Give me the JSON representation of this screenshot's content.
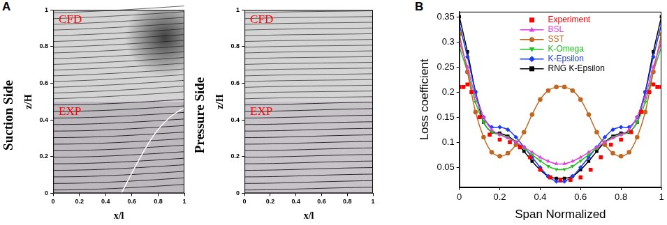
{
  "panel_labels": [
    "A",
    "B"
  ],
  "chart_data": [
    {
      "type": "image",
      "title": "Suction Side",
      "xlabel": "x/l",
      "ylabel": "z/H",
      "xlim": [
        0,
        1
      ],
      "ylim": [
        0,
        1
      ],
      "xticks": [
        0,
        0.2,
        0.4,
        0.6,
        0.8,
        1
      ],
      "yticks": [
        0,
        0.2,
        0.4,
        0.6,
        0.8,
        1
      ],
      "annotations": [
        "CFD",
        "EXP"
      ],
      "grid": false
    },
    {
      "type": "image",
      "title": "Pressure Side",
      "xlabel": "x/l",
      "ylabel": "z/H",
      "xlim": [
        0,
        1
      ],
      "ylim": [
        0,
        1
      ],
      "xticks": [
        0,
        0.2,
        0.4,
        0.6,
        0.8,
        1
      ],
      "yticks": [
        0,
        0.2,
        0.4,
        0.6,
        0.8,
        1
      ],
      "annotations": [
        "CFD",
        "EXP"
      ],
      "grid": false
    },
    {
      "type": "line",
      "xlabel": "Span Normalized",
      "ylabel": "Loss coefficient",
      "xlim": [
        0,
        1
      ],
      "ylim": [
        0.01,
        0.36
      ],
      "xticks": [
        0,
        0.2,
        0.4,
        0.6,
        0.8,
        1
      ],
      "yticks": [
        0.05,
        0.1,
        0.15,
        0.2,
        0.25,
        0.3,
        0.35
      ],
      "grid": false,
      "legend": "top",
      "x": [
        0,
        0.04,
        0.08,
        0.12,
        0.16,
        0.2,
        0.24,
        0.28,
        0.32,
        0.36,
        0.4,
        0.44,
        0.48,
        0.52,
        0.56,
        0.6,
        0.64,
        0.68,
        0.72,
        0.76,
        0.8,
        0.84,
        0.88,
        0.92,
        0.96,
        1
      ],
      "series": [
        {
          "name": "Experiment",
          "color": "#ff0000",
          "marker": "square",
          "line_style": "none",
          "x": [
            0,
            0.02,
            0.04,
            0.06,
            0.1,
            0.15,
            0.2,
            0.25,
            0.3,
            0.35,
            0.4,
            0.45,
            0.5,
            0.55,
            0.6,
            0.65,
            0.7,
            0.75,
            0.8,
            0.85,
            0.9,
            0.94,
            0.96,
            0.98,
            1
          ],
          "values": [
            0.21,
            0.21,
            0.215,
            0.2,
            0.15,
            0.115,
            0.105,
            0.1,
            0.09,
            0.07,
            0.045,
            0.03,
            0.025,
            0.025,
            0.03,
            0.045,
            0.07,
            0.095,
            0.105,
            0.12,
            0.16,
            0.2,
            0.215,
            0.21,
            0.21
          ]
        },
        {
          "name": "BSL",
          "color": "#e040e0",
          "marker": "triangle",
          "line_style": "solid",
          "values": [
            0.3,
            0.25,
            0.19,
            0.15,
            0.125,
            0.115,
            0.108,
            0.1,
            0.09,
            0.08,
            0.07,
            0.062,
            0.057,
            0.057,
            0.062,
            0.07,
            0.08,
            0.09,
            0.1,
            0.108,
            0.115,
            0.125,
            0.15,
            0.19,
            0.25,
            0.3
          ]
        },
        {
          "name": "SST",
          "color": "#c0661e",
          "marker": "circle",
          "line_style": "solid",
          "values": [
            0.315,
            0.24,
            0.16,
            0.11,
            0.08,
            0.072,
            0.078,
            0.095,
            0.12,
            0.155,
            0.185,
            0.203,
            0.21,
            0.21,
            0.203,
            0.185,
            0.155,
            0.12,
            0.095,
            0.078,
            0.072,
            0.08,
            0.11,
            0.16,
            0.24,
            0.315
          ]
        },
        {
          "name": "K-Omega",
          "color": "#22c022",
          "marker": "triangle-down",
          "line_style": "solid",
          "values": [
            0.29,
            0.24,
            0.18,
            0.14,
            0.12,
            0.115,
            0.11,
            0.1,
            0.088,
            0.075,
            0.063,
            0.052,
            0.046,
            0.046,
            0.052,
            0.063,
            0.075,
            0.088,
            0.1,
            0.11,
            0.115,
            0.12,
            0.14,
            0.18,
            0.24,
            0.29
          ]
        },
        {
          "name": "K-Epsilon",
          "color": "#1c3cf0",
          "marker": "diamond",
          "line_style": "solid",
          "values": [
            0.335,
            0.27,
            0.2,
            0.15,
            0.13,
            0.13,
            0.125,
            0.11,
            0.09,
            0.07,
            0.05,
            0.032,
            0.022,
            0.022,
            0.032,
            0.05,
            0.07,
            0.09,
            0.11,
            0.125,
            0.13,
            0.13,
            0.15,
            0.2,
            0.27,
            0.335
          ]
        },
        {
          "name": "RNG K-Epsilon",
          "color": "#000000",
          "marker": "square",
          "line_style": "solid",
          "values": [
            0.35,
            0.28,
            0.2,
            0.14,
            0.12,
            0.118,
            0.112,
            0.1,
            0.082,
            0.062,
            0.045,
            0.032,
            0.028,
            0.028,
            0.032,
            0.045,
            0.062,
            0.082,
            0.1,
            0.112,
            0.118,
            0.12,
            0.14,
            0.2,
            0.28,
            0.35
          ]
        }
      ]
    }
  ]
}
